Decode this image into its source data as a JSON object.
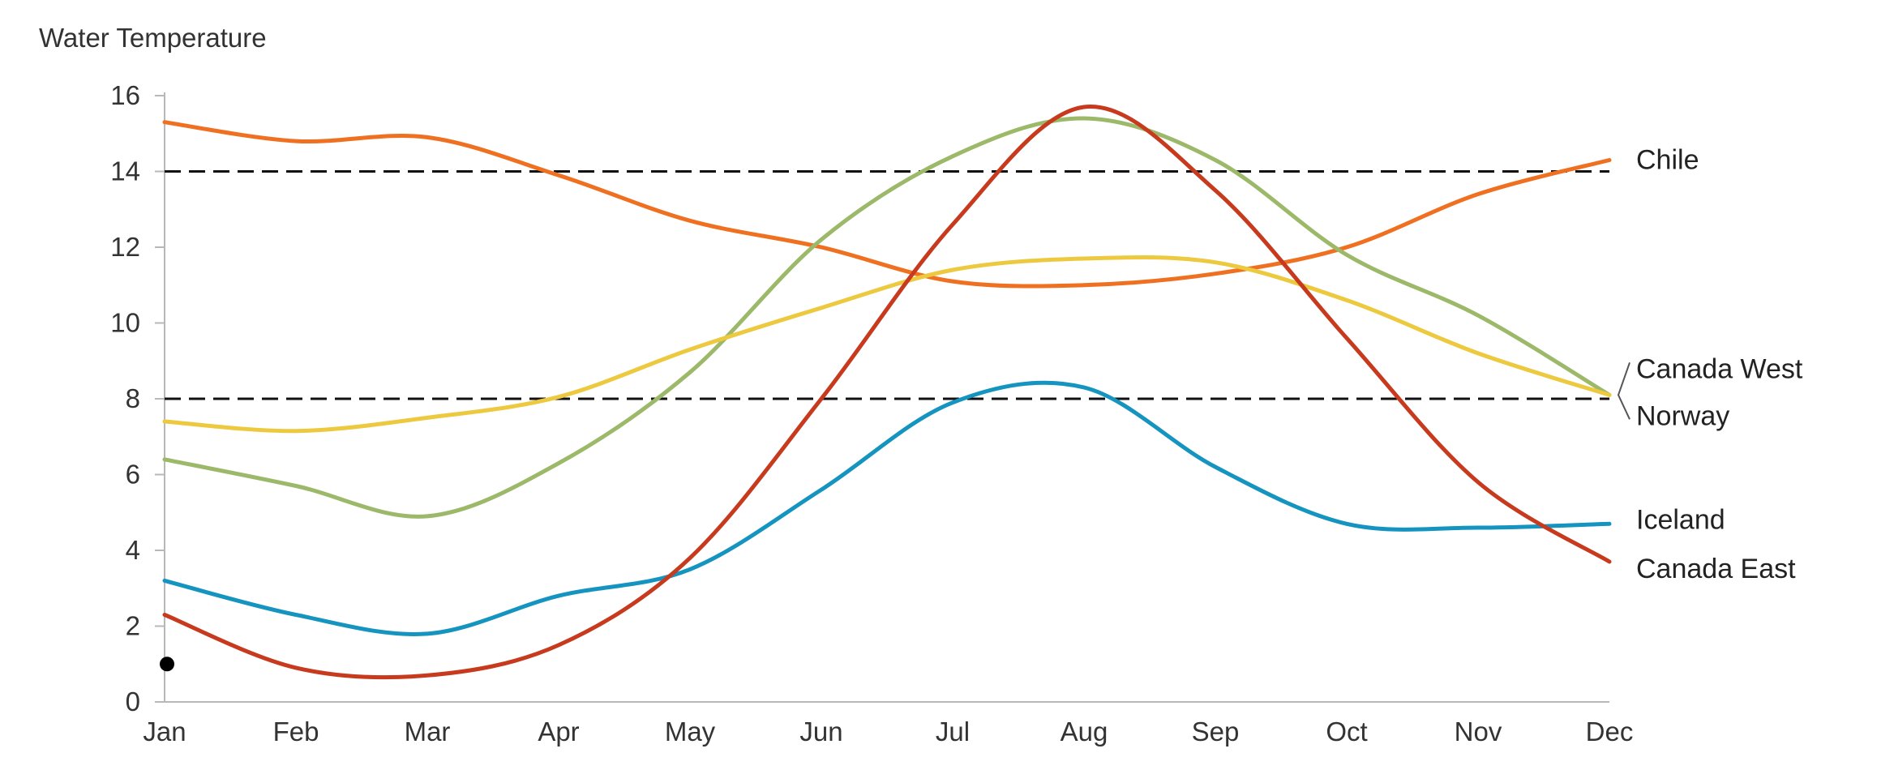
{
  "chart_data": {
    "type": "line",
    "title": "Water Temperature",
    "xlabel": "",
    "ylabel": "Water Temperature",
    "categories": [
      "Jan",
      "Feb",
      "Mar",
      "Apr",
      "May",
      "Jun",
      "Jul",
      "Aug",
      "Sep",
      "Oct",
      "Nov",
      "Dec"
    ],
    "yticks": [
      "0",
      "2",
      "4",
      "6",
      "8",
      "10",
      "12",
      "14",
      "16"
    ],
    "ylim": [
      0,
      16
    ],
    "grid": false,
    "reference_lines": [
      8,
      14
    ],
    "marker_point": {
      "x": "Jan",
      "y": 1.0
    },
    "series": [
      {
        "name": "Chile",
        "label": "Chile",
        "color": "#ef7020",
        "values": [
          15.3,
          14.8,
          14.9,
          13.9,
          12.7,
          12.0,
          11.1,
          11.0,
          11.3,
          12.0,
          13.4,
          14.3
        ]
      },
      {
        "name": "Canada West",
        "label": "Canada West",
        "color": "#9cb96a",
        "values": [
          6.4,
          5.7,
          4.9,
          6.3,
          8.7,
          12.2,
          14.4,
          15.4,
          14.3,
          11.8,
          10.2,
          8.1
        ]
      },
      {
        "name": "Norway",
        "label": "Norway",
        "color": "#ecc93e",
        "values": [
          7.4,
          7.15,
          7.5,
          8.05,
          9.3,
          10.4,
          11.4,
          11.7,
          11.6,
          10.6,
          9.2,
          8.1
        ]
      },
      {
        "name": "Iceland",
        "label": "Iceland",
        "color": "#1494bf",
        "values": [
          3.2,
          2.3,
          1.8,
          2.8,
          3.5,
          5.6,
          7.9,
          8.3,
          6.2,
          4.7,
          4.6,
          4.7
        ]
      },
      {
        "name": "Canada East",
        "label": "Canada East",
        "color": "#c73a1e",
        "values": [
          2.3,
          0.9,
          0.7,
          1.5,
          3.8,
          8.0,
          12.6,
          15.7,
          13.5,
          9.6,
          5.8,
          3.7
        ]
      }
    ]
  }
}
